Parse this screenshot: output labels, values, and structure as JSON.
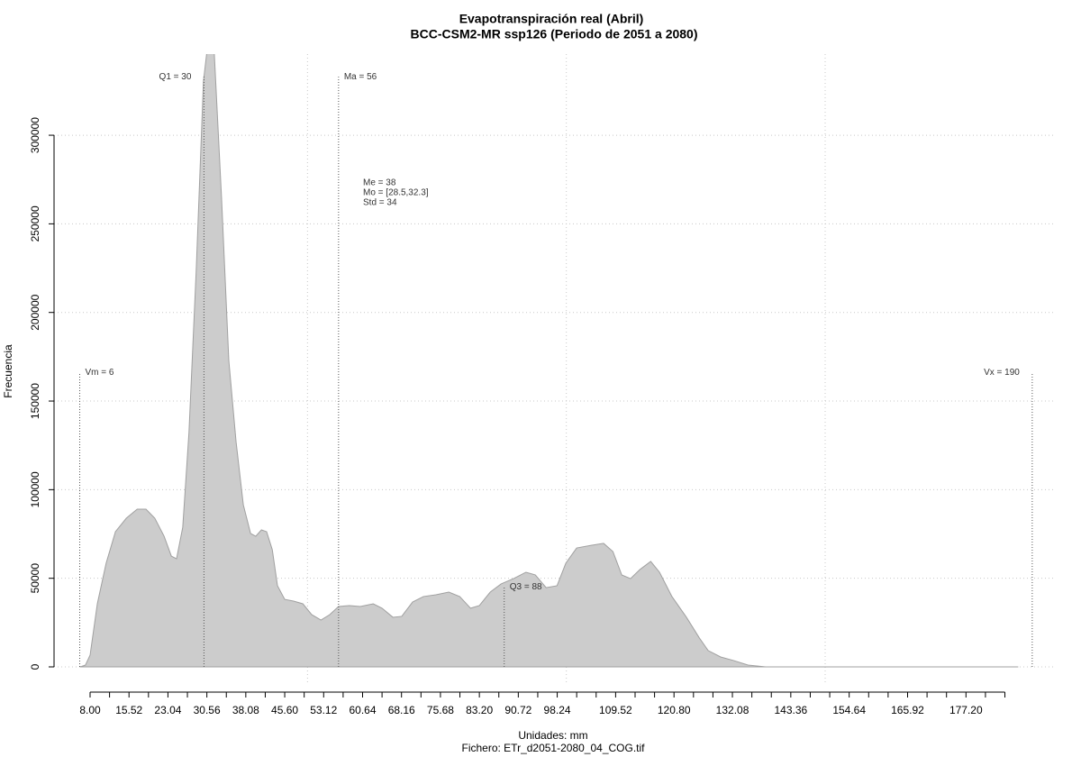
{
  "chart_data": {
    "type": "area",
    "title": "Evapotranspiración real (Abril)",
    "subtitle": "BCC-CSM2-MR ssp126 (Periodo de 2051 a 2080)",
    "xlabel": "Unidades: mm",
    "caption": "Fichero: ETr_d2051-2080_04_COG.tif",
    "ylabel": "Frecuencia",
    "color": "#cccccc",
    "x": [
      6.1,
      7.1,
      8,
      9.4,
      11.1,
      12.9,
      15.0,
      17.1,
      18.8,
      20.5,
      22.3,
      23.7,
      24.7,
      25.9,
      27.1,
      28.5,
      29.9,
      30.6,
      31.2,
      32.0,
      33.4,
      34.8,
      36.2,
      37.6,
      39.0,
      40.0,
      41.1,
      42.1,
      43.2,
      44.2,
      45.6,
      47.3,
      49.1,
      50.8,
      52.6,
      54.3,
      56.0,
      58.1,
      60.2,
      62.7,
      64.4,
      66.5,
      68.2,
      70.3,
      72.4,
      74.8,
      77.3,
      79.4,
      81.5,
      83.2,
      85.3,
      87.4,
      89.8,
      92.2,
      94.0,
      96.1,
      98.2,
      99.9,
      102.0,
      104.8,
      107.2,
      109.0,
      110.7,
      112.4,
      114.2,
      116.3,
      118.0,
      120.4,
      123.2,
      125.7,
      127.4,
      129.8,
      132.3,
      135.1,
      138.5,
      187.3
    ],
    "values": [
      0,
      1000,
      6600,
      35600,
      58500,
      76300,
      83900,
      89000,
      89000,
      83900,
      73700,
      62500,
      61000,
      78800,
      132200,
      223700,
      330500,
      348000,
      370000,
      345800,
      264400,
      172900,
      127100,
      91500,
      75300,
      73700,
      77300,
      76300,
      66100,
      45800,
      38100,
      37100,
      35600,
      29500,
      26400,
      29500,
      34100,
      34600,
      34100,
      35600,
      33100,
      28000,
      28500,
      36600,
      39700,
      40700,
      42200,
      39700,
      33100,
      34600,
      42200,
      46800,
      49800,
      53400,
      51900,
      44700,
      45800,
      58500,
      67100,
      68600,
      69700,
      65100,
      51900,
      49800,
      54900,
      59500,
      53400,
      39700,
      28000,
      16300,
      9200,
      5600,
      3600,
      1000,
      0,
      0
    ],
    "xlim": [
      1.04,
      194.2
    ],
    "ylim": [
      -10170,
      345800
    ],
    "xticks": [
      {
        "value": 8,
        "label": "8.00"
      },
      15.52,
      23.04,
      30.56,
      38.08,
      {
        "value": 45.6,
        "label": "45.60"
      },
      53.12,
      60.64,
      68.16,
      75.68,
      {
        "value": 83.2,
        "label": "83.20"
      },
      90.72,
      98.24,
      109.52,
      {
        "value": 120.8,
        "label": "120.80"
      },
      132.08,
      143.36,
      154.64,
      165.92,
      {
        "value": 177.2,
        "label": "177.20"
      }
    ],
    "xticks_minor": [
      11.76,
      19.28,
      26.8,
      34.32,
      41.84,
      49.36,
      56.88,
      64.4,
      71.92,
      79.44,
      86.96,
      94.48,
      102,
      105.76,
      113.28,
      117.04,
      124.56,
      128.32,
      135.84,
      139.6,
      147.12,
      150.88,
      158.4,
      162.16,
      169.68,
      173.44,
      180.96,
      184.72
    ],
    "xgrid": [
      50,
      100,
      150
    ],
    "yticks": [
      0,
      50000,
      100000,
      150000,
      200000,
      250000,
      300000
    ],
    "grid": true,
    "markers": [
      {
        "label": "Vm = 6",
        "x": 6,
        "y": 166000
      },
      {
        "label": "Q1 = 30",
        "x": 30,
        "y": 333000
      },
      {
        "label": "Ma = 56",
        "x": 56,
        "y": 333000
      },
      {
        "label": "Q3 = 88",
        "x": 88,
        "y": 45000
      },
      {
        "label": "Vx = 190",
        "x": 190,
        "y": 166000
      }
    ],
    "stats": [
      "Me = 38",
      "Mo = [28.5,32.3]",
      "Std = 34"
    ]
  }
}
